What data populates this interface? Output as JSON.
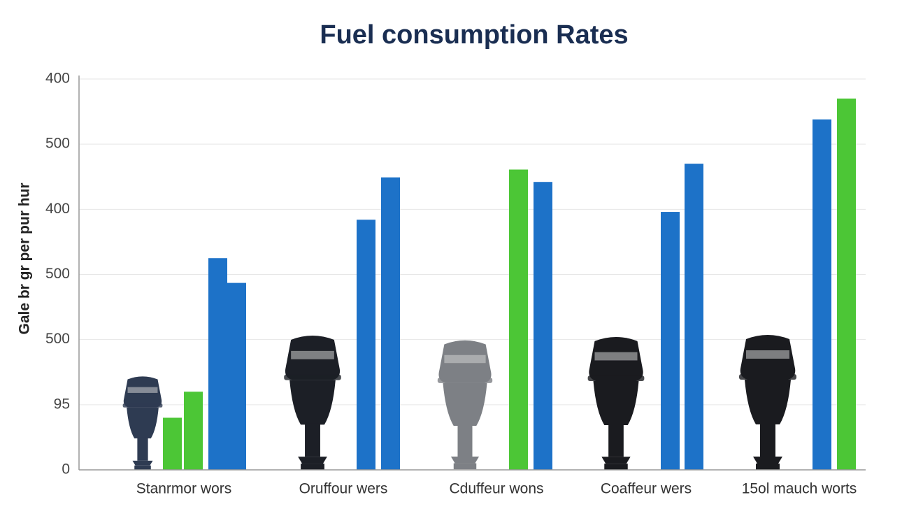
{
  "chart_data": {
    "type": "bar",
    "title": "Fuel consumption Rates",
    "y_label": "Gale br gr per pur hur",
    "ylim": [
      0,
      6
    ],
    "yticks": [
      0,
      {
        "value": 1,
        "label": "95"
      },
      {
        "value": 2,
        "label": "500"
      },
      {
        "value": 3,
        "label": "500"
      },
      {
        "value": 4,
        "label": "400"
      },
      {
        "value": 5,
        "label": "500"
      },
      {
        "value": 6,
        "label": "400"
      }
    ],
    "grid": true,
    "groups": [
      {
        "category": "Stanrmor wors",
        "bars": [
          {
            "color": "#4cc636",
            "value": 0.8
          },
          {
            "color": "#4cc636",
            "value": 1.2
          },
          {
            "color": "#1d72c8",
            "value": 3.25
          },
          {
            "color": "#1d72c8",
            "value": 2.87
          }
        ]
      },
      {
        "category": "Oruffour wers",
        "bars": [
          {
            "color": "#1d72c8",
            "value": 3.84
          },
          {
            "color": "#1d72c8",
            "value": 4.49
          }
        ]
      },
      {
        "category": "Cduffeur wons",
        "bars": [
          {
            "color": "#4cc636",
            "value": 4.61
          },
          {
            "color": "#1d72c8",
            "value": 4.42
          }
        ]
      },
      {
        "category": "Coaffeur wers",
        "bars": [
          {
            "color": "#1d72c8",
            "value": 3.96
          },
          {
            "color": "#1d72c8",
            "value": 4.7
          }
        ]
      },
      {
        "category": "15ol mauch worts",
        "bars": [
          {
            "color": "#1d72c8",
            "value": 5.38
          },
          {
            "color": "#4cc636",
            "value": 5.7
          }
        ]
      }
    ]
  }
}
